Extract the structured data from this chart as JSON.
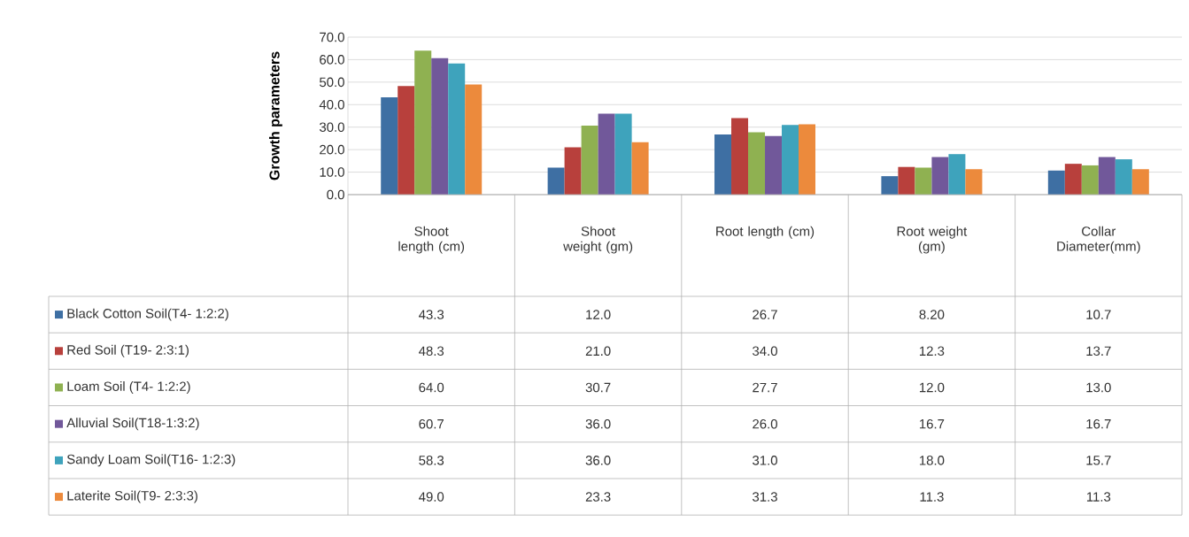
{
  "chart_data": {
    "type": "bar",
    "ylabel": "Growth parameters",
    "categories": [
      "Shoot length (cm)",
      "Shoot weight (gm)",
      "Root length (cm)",
      "Root weight (gm)",
      "Collar Diameter(mm)"
    ],
    "series": [
      {
        "name": "Black Cotton Soil(T4- 1:2:2)",
        "color": "#3e6fa3",
        "values": [
          43.3,
          12.0,
          26.7,
          8.2,
          10.7
        ],
        "value_labels": [
          "43.3",
          "12.0",
          "26.7",
          "8.20",
          "10.7"
        ]
      },
      {
        "name": "Red Soil (T19- 2:3:1)",
        "color": "#b8403c",
        "values": [
          48.3,
          21.0,
          34.0,
          12.3,
          13.7
        ],
        "value_labels": [
          "48.3",
          "21.0",
          "34.0",
          "12.3",
          "13.7"
        ]
      },
      {
        "name": "Loam Soil (T4- 1:2:2)",
        "color": "#8fb151",
        "values": [
          64.0,
          30.7,
          27.7,
          12.0,
          13.0
        ],
        "value_labels": [
          "64.0",
          "30.7",
          "27.7",
          "12.0",
          "13.0"
        ]
      },
      {
        "name": "Alluvial Soil(T18-1:3:2)",
        "color": "#71589a",
        "values": [
          60.7,
          36.0,
          26.0,
          16.7,
          16.7
        ],
        "value_labels": [
          "60.7",
          "36.0",
          "26.0",
          "16.7",
          "16.7"
        ]
      },
      {
        "name": "Sandy Loam Soil(T16- 1:2:3)",
        "color": "#3ea3bc",
        "values": [
          58.3,
          36.0,
          31.0,
          18.0,
          15.7
        ],
        "value_labels": [
          "58.3",
          "36.0",
          "31.0",
          "18.0",
          "15.7"
        ]
      },
      {
        "name": "Laterite Soil(T9- 2:3:3)",
        "color": "#ec8a3c",
        "values": [
          49.0,
          23.3,
          31.3,
          11.3,
          11.3
        ],
        "value_labels": [
          "49.0",
          "23.3",
          "31.3",
          "11.3",
          "11.3"
        ]
      }
    ],
    "ylim": [
      0,
      70
    ],
    "yticks": [
      {
        "value": 0,
        "label": "0.0"
      },
      {
        "value": 10,
        "label": "10.0"
      },
      {
        "value": 20,
        "label": "20.0"
      },
      {
        "value": 30,
        "label": "30.0"
      },
      {
        "value": 40,
        "label": "40.0"
      },
      {
        "value": 50,
        "label": "50.0"
      },
      {
        "value": 60,
        "label": "60.0"
      },
      {
        "value": 70,
        "label": "70.0"
      }
    ],
    "grid": "y",
    "legend": "bottom"
  }
}
